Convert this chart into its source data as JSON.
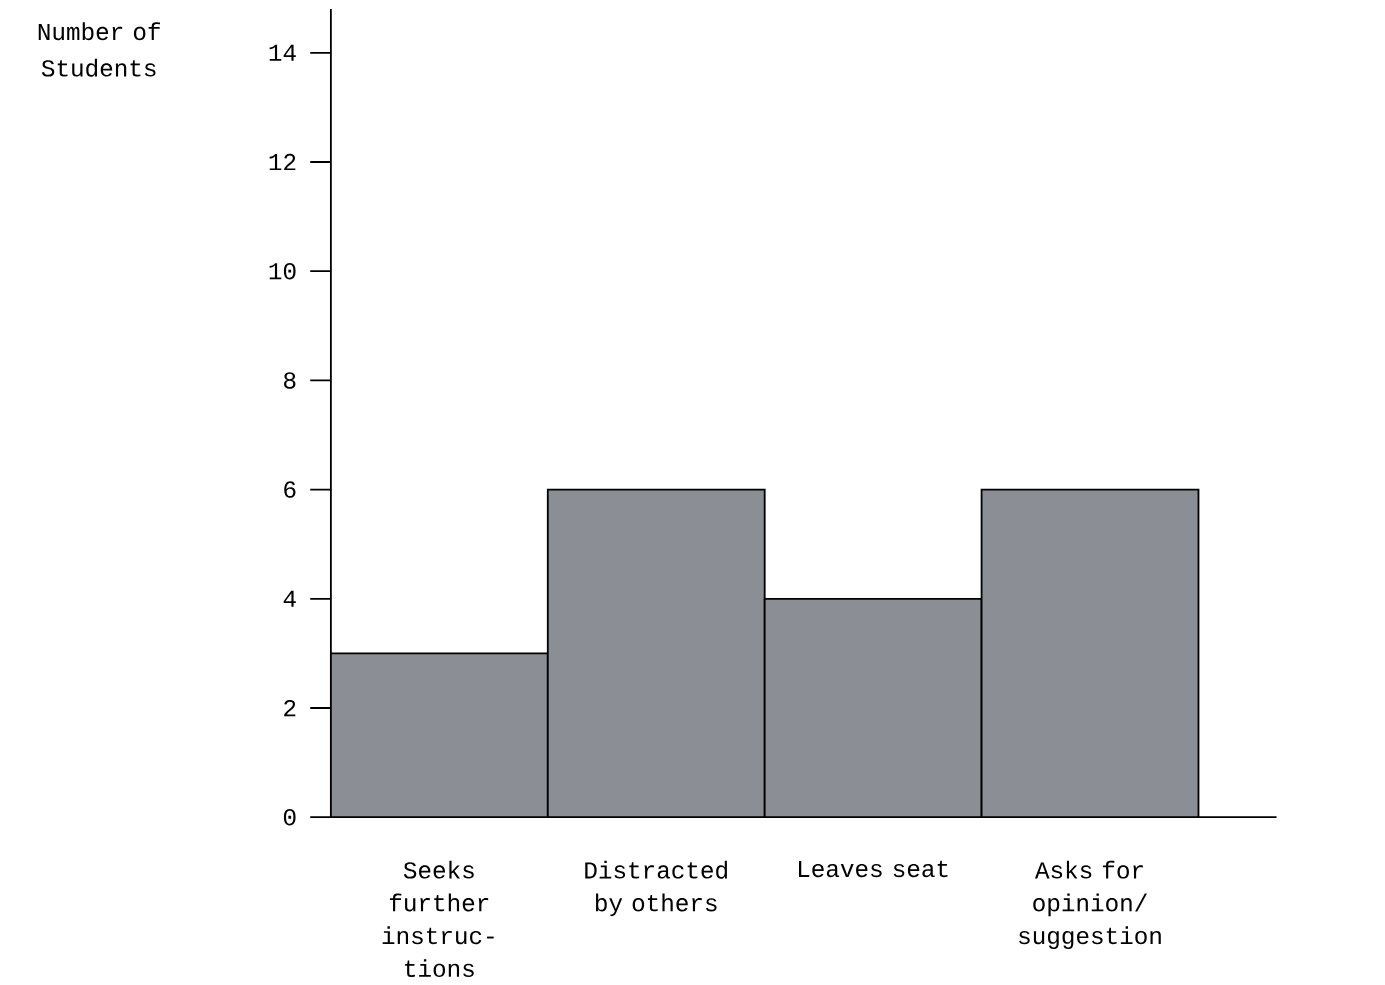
{
  "chart_data": {
    "type": "bar",
    "ylabel": "Number of Students",
    "categories": [
      "Seeks further instruc-tions",
      "Distracted by others",
      "Leaves seat",
      "Asks for opinion/ suggestion"
    ],
    "values": [
      3,
      6,
      4,
      6
    ],
    "color": "#8c8e96",
    "ylim": [
      0,
      14.8
    ],
    "yticks": [
      0,
      2,
      4,
      6,
      8,
      10,
      12,
      14
    ],
    "grid": false
  }
}
